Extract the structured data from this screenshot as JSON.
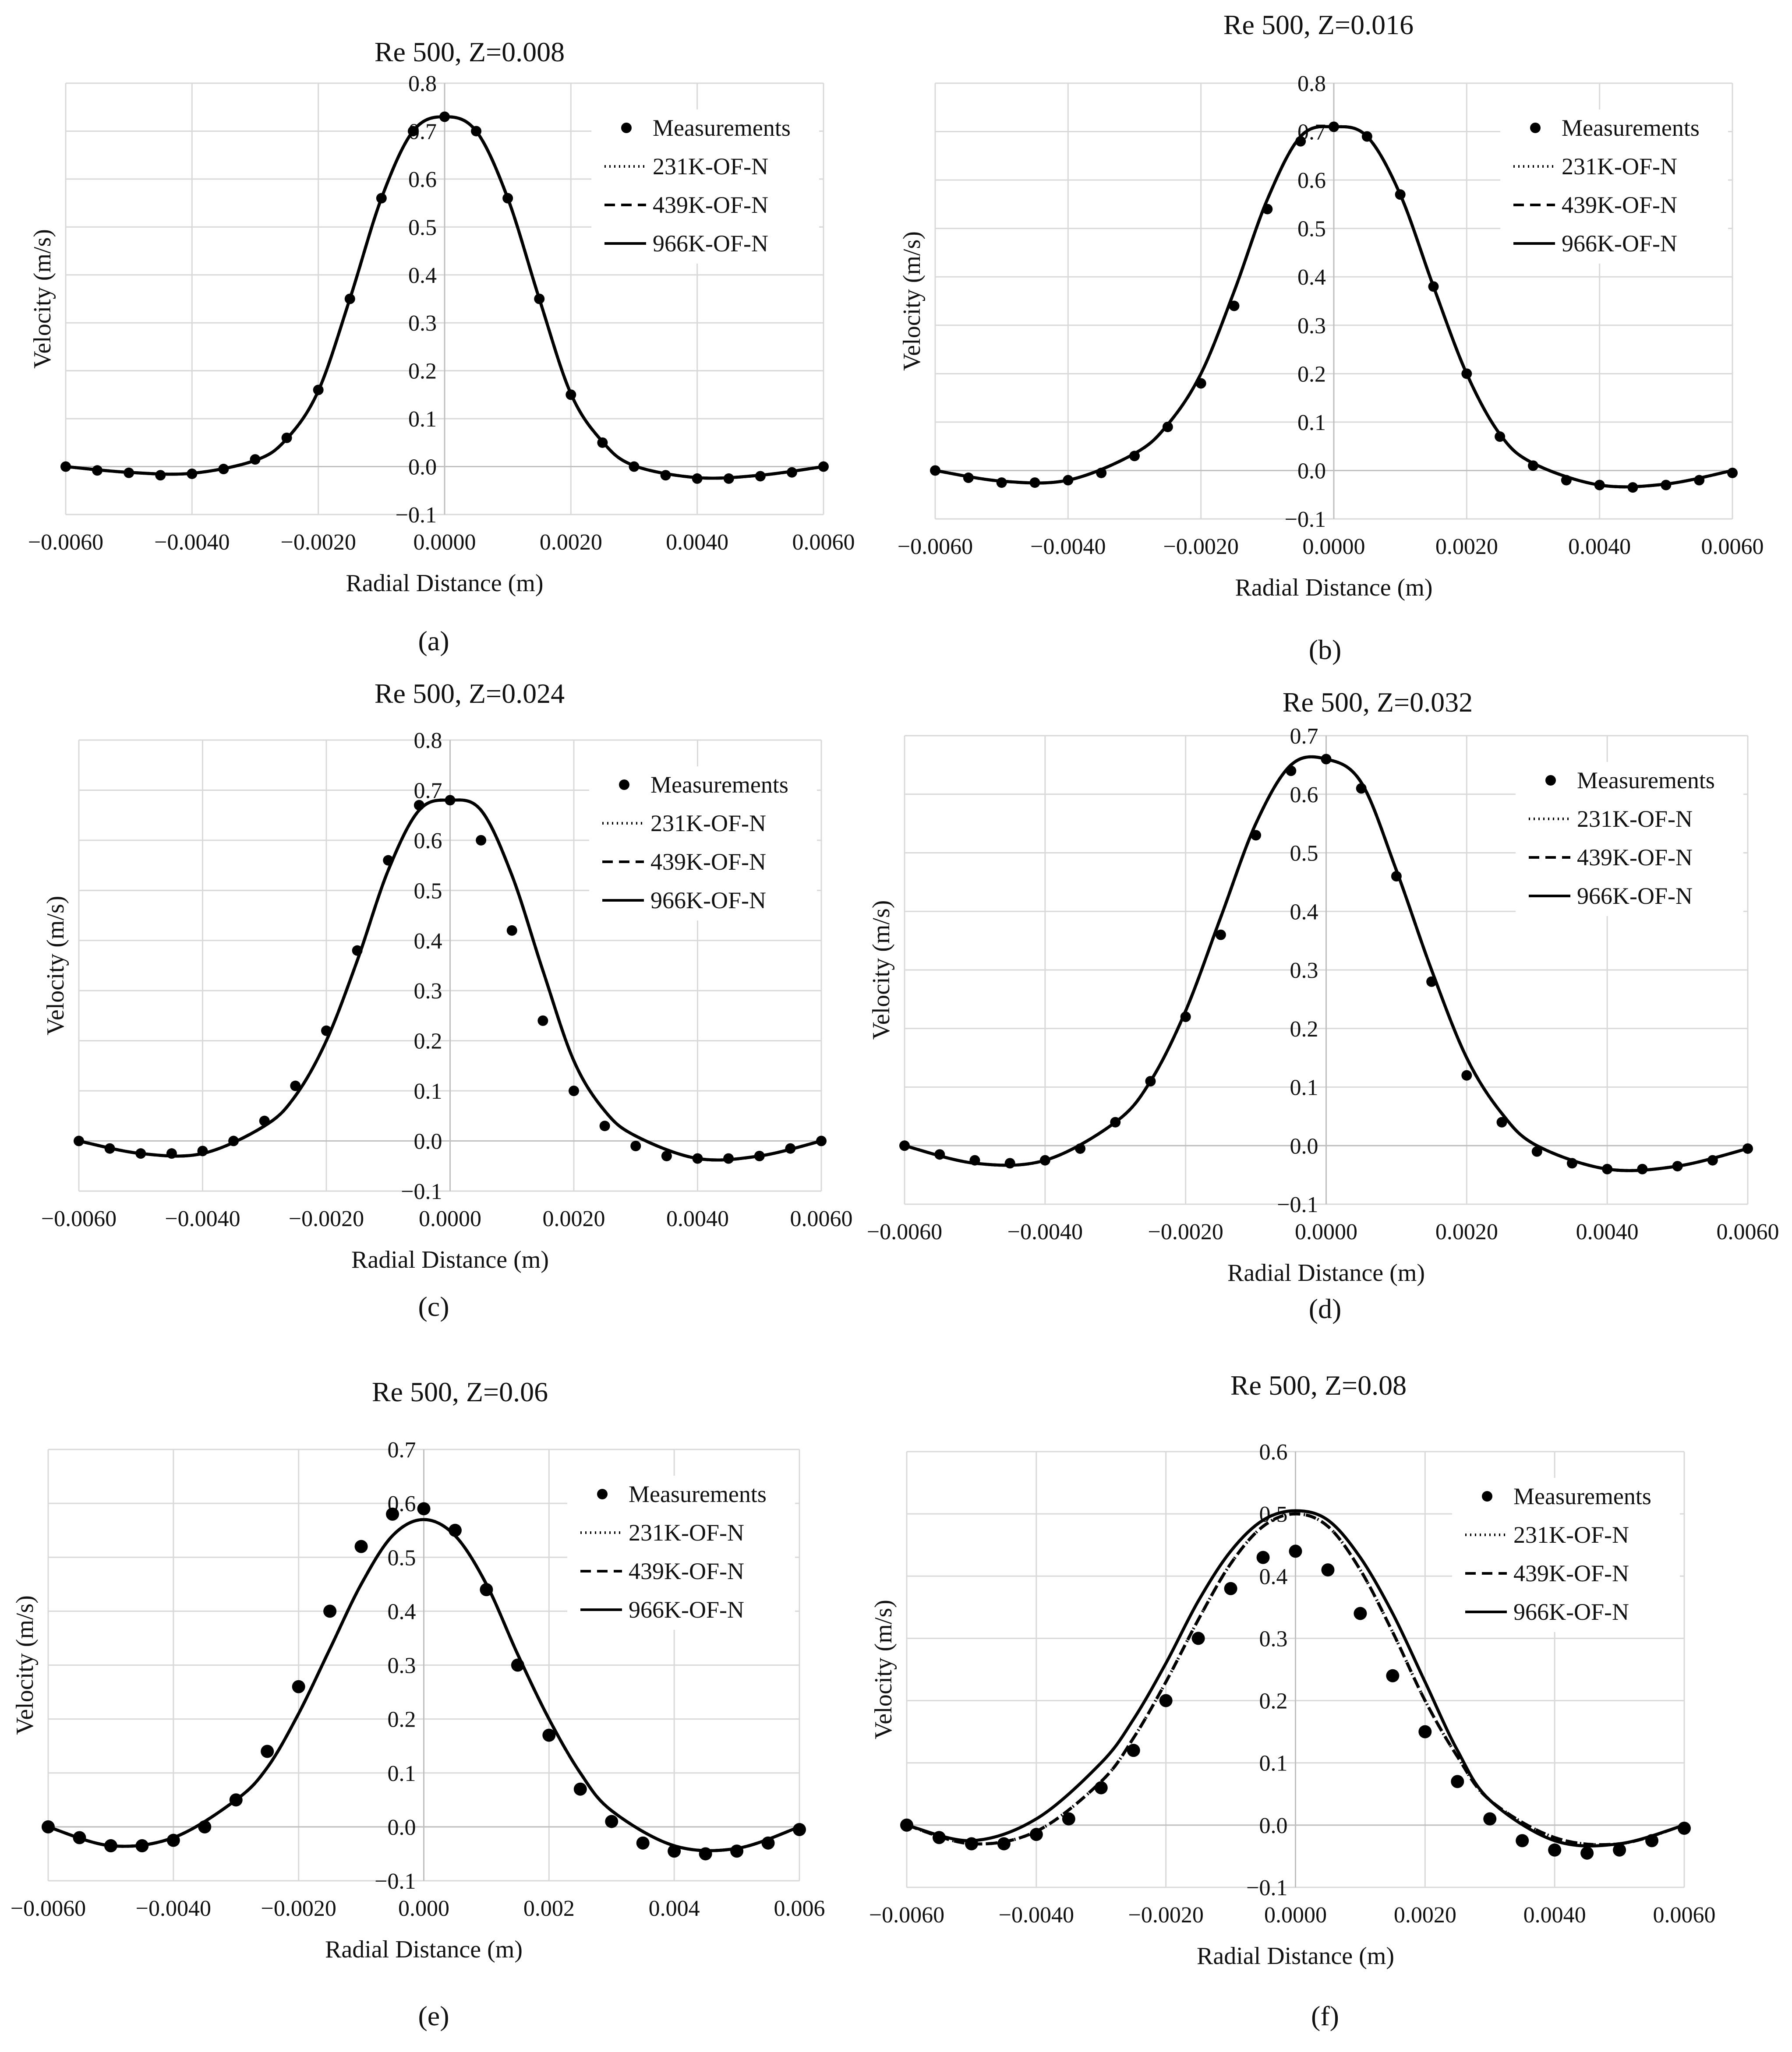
{
  "figure": {
    "panel_captions": [
      "(a)",
      "(b)",
      "(c)",
      "(d)",
      "(e)",
      "(f)"
    ]
  },
  "legend_labels": [
    "Measurements",
    "231K-OF-N",
    "439K-OF-N",
    "966K-OF-N"
  ],
  "chart_data": [
    {
      "id": "a",
      "type": "line",
      "title": "Re 500, Z=0.008",
      "xlabel": "Radial Distance (m)",
      "ylabel": "Velocity (m/s)",
      "xlim": [
        -0.006,
        0.006
      ],
      "ylim": [
        -0.1,
        0.8
      ],
      "xticks": [
        -0.006,
        -0.004,
        -0.002,
        0.0,
        0.002,
        0.004,
        0.006
      ],
      "xtick_labels": [
        "−0.0060",
        "−0.0040",
        "−0.0020",
        "0.0000",
        "0.0020",
        "0.0040",
        "0.0060"
      ],
      "yticks": [
        -0.1,
        0.0,
        0.1,
        0.2,
        0.3,
        0.4,
        0.5,
        0.6,
        0.7,
        0.8
      ],
      "ytick_labels": [
        "−0.1",
        "0.0",
        "0.1",
        "0.2",
        "0.3",
        "0.4",
        "0.5",
        "0.6",
        "0.7",
        "0.8"
      ],
      "grid": true,
      "legend_position": "top-right",
      "measurements": {
        "x": [
          -0.006,
          -0.0055,
          -0.005,
          -0.0045,
          -0.004,
          -0.0035,
          -0.003,
          -0.0025,
          -0.002,
          -0.0015,
          -0.001,
          -0.0005,
          0.0,
          0.0005,
          0.001,
          0.0015,
          0.002,
          0.0025,
          0.003,
          0.0035,
          0.004,
          0.0045,
          0.005,
          0.0055,
          0.006
        ],
        "y": [
          0.0,
          -0.008,
          -0.013,
          -0.018,
          -0.015,
          -0.005,
          0.015,
          0.06,
          0.16,
          0.35,
          0.56,
          0.7,
          0.73,
          0.7,
          0.56,
          0.35,
          0.15,
          0.05,
          0.0,
          -0.018,
          -0.025,
          -0.025,
          -0.02,
          -0.012,
          0.0
        ]
      },
      "models": {
        "x": [
          -0.006,
          -0.005,
          -0.004,
          -0.003,
          -0.0025,
          -0.002,
          -0.0015,
          -0.001,
          -0.0005,
          0.0,
          0.0005,
          0.001,
          0.0015,
          0.002,
          0.0025,
          0.003,
          0.004,
          0.005,
          0.006
        ],
        "231K-OF-N": [
          0.0,
          -0.012,
          -0.014,
          0.013,
          0.058,
          0.158,
          0.35,
          0.56,
          0.7,
          0.73,
          0.7,
          0.56,
          0.35,
          0.152,
          0.052,
          0.002,
          -0.023,
          -0.018,
          0.0
        ],
        "439K-OF-N": [
          0.0,
          -0.012,
          -0.014,
          0.013,
          0.058,
          0.158,
          0.35,
          0.56,
          0.7,
          0.73,
          0.7,
          0.56,
          0.35,
          0.152,
          0.052,
          0.002,
          -0.023,
          -0.018,
          0.0
        ],
        "966K-OF-N": [
          0.0,
          -0.012,
          -0.014,
          0.013,
          0.058,
          0.158,
          0.35,
          0.56,
          0.7,
          0.73,
          0.7,
          0.56,
          0.35,
          0.152,
          0.052,
          0.002,
          -0.023,
          -0.018,
          0.0
        ]
      }
    },
    {
      "id": "b",
      "type": "line",
      "title": "Re 500, Z=0.016",
      "xlabel": "Radial Distance (m)",
      "ylabel": "Velocity (m/s)",
      "xlim": [
        -0.006,
        0.006
      ],
      "ylim": [
        -0.1,
        0.8
      ],
      "xticks": [
        -0.006,
        -0.004,
        -0.002,
        0.0,
        0.002,
        0.004,
        0.006
      ],
      "xtick_labels": [
        "−0.0060",
        "−0.0040",
        "−0.0020",
        "0.0000",
        "0.0020",
        "0.0040",
        "0.0060"
      ],
      "yticks": [
        -0.1,
        0.0,
        0.1,
        0.2,
        0.3,
        0.4,
        0.5,
        0.6,
        0.7,
        0.8
      ],
      "ytick_labels": [
        "−0.1",
        "0.0",
        "0.1",
        "0.2",
        "0.3",
        "0.4",
        "0.5",
        "0.6",
        "0.7",
        "0.8"
      ],
      "grid": true,
      "legend_position": "top-right",
      "measurements": {
        "x": [
          -0.006,
          -0.0055,
          -0.005,
          -0.0045,
          -0.004,
          -0.0035,
          -0.003,
          -0.0025,
          -0.002,
          -0.0015,
          -0.001,
          -0.0005,
          0.0,
          0.0005,
          0.001,
          0.0015,
          0.002,
          0.0025,
          0.003,
          0.0035,
          0.004,
          0.0045,
          0.005,
          0.0055,
          0.006
        ],
        "y": [
          0.0,
          -0.015,
          -0.025,
          -0.025,
          -0.02,
          -0.005,
          0.03,
          0.09,
          0.18,
          0.34,
          0.54,
          0.68,
          0.71,
          0.69,
          0.57,
          0.38,
          0.2,
          0.07,
          0.01,
          -0.02,
          -0.03,
          -0.035,
          -0.03,
          -0.02,
          -0.005
        ]
      },
      "models": {
        "x": [
          -0.006,
          -0.005,
          -0.004,
          -0.003,
          -0.0025,
          -0.002,
          -0.0015,
          -0.001,
          -0.0005,
          0.0,
          0.0005,
          0.001,
          0.0015,
          0.002,
          0.0025,
          0.003,
          0.004,
          0.005,
          0.006
        ],
        "231K-OF-N": [
          0.0,
          -0.022,
          -0.02,
          0.035,
          0.095,
          0.2,
          0.37,
          0.56,
          0.69,
          0.71,
          0.69,
          0.57,
          0.38,
          0.2,
          0.075,
          0.015,
          -0.03,
          -0.028,
          0.0
        ],
        "439K-OF-N": [
          0.0,
          -0.022,
          -0.02,
          0.035,
          0.095,
          0.2,
          0.37,
          0.56,
          0.69,
          0.71,
          0.69,
          0.57,
          0.38,
          0.2,
          0.075,
          0.015,
          -0.03,
          -0.028,
          0.0
        ],
        "966K-OF-N": [
          0.0,
          -0.022,
          -0.02,
          0.035,
          0.095,
          0.2,
          0.37,
          0.56,
          0.69,
          0.71,
          0.69,
          0.57,
          0.38,
          0.2,
          0.075,
          0.015,
          -0.03,
          -0.028,
          0.0
        ]
      }
    },
    {
      "id": "c",
      "type": "line",
      "title": "Re 500, Z=0.024",
      "xlabel": "Radial Distance (m)",
      "ylabel": "Velocity (m/s)",
      "xlim": [
        -0.006,
        0.006
      ],
      "ylim": [
        -0.1,
        0.8
      ],
      "xticks": [
        -0.006,
        -0.004,
        -0.002,
        0.0,
        0.002,
        0.004,
        0.006
      ],
      "xtick_labels": [
        "−0.0060",
        "−0.0040",
        "−0.0020",
        "0.0000",
        "0.0020",
        "0.0040",
        "0.0060"
      ],
      "yticks": [
        -0.1,
        0.0,
        0.1,
        0.2,
        0.3,
        0.4,
        0.5,
        0.6,
        0.7,
        0.8
      ],
      "ytick_labels": [
        "−0.1",
        "0.0",
        "0.1",
        "0.2",
        "0.3",
        "0.4",
        "0.5",
        "0.6",
        "0.7",
        "0.8"
      ],
      "grid": true,
      "legend_position": "top-right",
      "measurements": {
        "x": [
          -0.006,
          -0.0055,
          -0.005,
          -0.0045,
          -0.004,
          -0.0035,
          -0.003,
          -0.0025,
          -0.002,
          -0.0015,
          -0.001,
          -0.0005,
          0.0,
          0.0005,
          0.001,
          0.0015,
          0.002,
          0.0025,
          0.003,
          0.0035,
          0.004,
          0.0045,
          0.005,
          0.0055,
          0.006
        ],
        "y": [
          0.0,
          -0.015,
          -0.025,
          -0.025,
          -0.02,
          0.0,
          0.04,
          0.11,
          0.22,
          0.38,
          0.56,
          0.67,
          0.68,
          0.6,
          0.42,
          0.24,
          0.1,
          0.03,
          -0.01,
          -0.03,
          -0.035,
          -0.035,
          -0.03,
          -0.015,
          0.0
        ]
      },
      "models": {
        "x": [
          -0.006,
          -0.005,
          -0.004,
          -0.003,
          -0.0025,
          -0.002,
          -0.0015,
          -0.001,
          -0.0005,
          0.0,
          0.0005,
          0.001,
          0.0015,
          0.002,
          0.0025,
          0.003,
          0.004,
          0.005,
          0.006
        ],
        "231K-OF-N": [
          0.0,
          -0.025,
          -0.025,
          0.03,
          0.09,
          0.2,
          0.36,
          0.54,
          0.66,
          0.68,
          0.66,
          0.53,
          0.34,
          0.16,
          0.06,
          0.01,
          -0.035,
          -0.03,
          0.0
        ],
        "439K-OF-N": [
          0.0,
          -0.025,
          -0.025,
          0.03,
          0.09,
          0.2,
          0.36,
          0.54,
          0.66,
          0.68,
          0.66,
          0.53,
          0.34,
          0.16,
          0.06,
          0.01,
          -0.035,
          -0.03,
          0.0
        ],
        "966K-OF-N": [
          0.0,
          -0.025,
          -0.025,
          0.03,
          0.09,
          0.2,
          0.36,
          0.54,
          0.66,
          0.68,
          0.66,
          0.53,
          0.34,
          0.16,
          0.06,
          0.01,
          -0.035,
          -0.03,
          0.0
        ]
      }
    },
    {
      "id": "d",
      "type": "line",
      "title": "Re 500, Z=0.032",
      "xlabel": "Radial Distance (m)",
      "ylabel": "Velocity (m/s)",
      "xlim": [
        -0.006,
        0.006
      ],
      "ylim": [
        -0.1,
        0.7
      ],
      "xticks": [
        -0.006,
        -0.004,
        -0.002,
        0.0,
        0.002,
        0.004,
        0.006
      ],
      "xtick_labels": [
        "−0.0060",
        "−0.0040",
        "−0.0020",
        "0.0000",
        "0.0020",
        "0.0040",
        "0.0060"
      ],
      "yticks": [
        -0.1,
        0.0,
        0.1,
        0.2,
        0.3,
        0.4,
        0.5,
        0.6,
        0.7
      ],
      "ytick_labels": [
        "−0.1",
        "0.0",
        "0.1",
        "0.2",
        "0.3",
        "0.4",
        "0.5",
        "0.6",
        "0.7"
      ],
      "grid": true,
      "legend_position": "top-right",
      "measurements": {
        "x": [
          -0.006,
          -0.0055,
          -0.005,
          -0.0045,
          -0.004,
          -0.0035,
          -0.003,
          -0.0025,
          -0.002,
          -0.0015,
          -0.001,
          -0.0005,
          0.0,
          0.0005,
          0.001,
          0.0015,
          0.002,
          0.0025,
          0.003,
          0.0035,
          0.004,
          0.0045,
          0.005,
          0.0055,
          0.006
        ],
        "y": [
          0.0,
          -0.015,
          -0.025,
          -0.03,
          -0.025,
          -0.005,
          0.04,
          0.11,
          0.22,
          0.36,
          0.53,
          0.64,
          0.66,
          0.61,
          0.46,
          0.28,
          0.12,
          0.04,
          -0.01,
          -0.03,
          -0.04,
          -0.04,
          -0.035,
          -0.025,
          -0.005
        ]
      },
      "models": {
        "x": [
          -0.006,
          -0.005,
          -0.004,
          -0.003,
          -0.0025,
          -0.002,
          -0.0015,
          -0.001,
          -0.0005,
          0.0,
          0.0005,
          0.001,
          0.0015,
          0.002,
          0.0025,
          0.003,
          0.004,
          0.005,
          0.006
        ],
        "231K-OF-N": [
          0.0,
          -0.03,
          -0.025,
          0.04,
          0.11,
          0.23,
          0.39,
          0.55,
          0.65,
          0.66,
          0.62,
          0.47,
          0.3,
          0.15,
          0.055,
          0.0,
          -0.04,
          -0.035,
          -0.005
        ],
        "439K-OF-N": [
          0.0,
          -0.03,
          -0.025,
          0.04,
          0.11,
          0.23,
          0.39,
          0.55,
          0.65,
          0.66,
          0.62,
          0.47,
          0.3,
          0.15,
          0.055,
          0.0,
          -0.04,
          -0.035,
          -0.005
        ],
        "966K-OF-N": [
          0.0,
          -0.03,
          -0.025,
          0.04,
          0.11,
          0.23,
          0.39,
          0.55,
          0.65,
          0.66,
          0.62,
          0.47,
          0.3,
          0.15,
          0.055,
          0.0,
          -0.04,
          -0.035,
          -0.005
        ]
      }
    },
    {
      "id": "e",
      "type": "line",
      "title": "Re 500, Z=0.06",
      "xlabel": "Radial Distance (m)",
      "ylabel": "Velocity (m/s)",
      "xlim": [
        -0.006,
        0.006
      ],
      "ylim": [
        -0.1,
        0.7
      ],
      "xticks": [
        -0.006,
        -0.004,
        -0.002,
        0.0,
        0.002,
        0.004,
        0.006
      ],
      "xtick_labels": [
        "−0.0060",
        "−0.0040",
        "−0.0020",
        "0.000",
        "0.002",
        "0.004",
        "0.006"
      ],
      "yticks": [
        -0.1,
        0.0,
        0.1,
        0.2,
        0.3,
        0.4,
        0.5,
        0.6,
        0.7
      ],
      "ytick_labels": [
        "−0.1",
        "0.0",
        "0.1",
        "0.2",
        "0.3",
        "0.4",
        "0.5",
        "0.6",
        "0.7"
      ],
      "grid": true,
      "legend_position": "top-right",
      "measurements": {
        "x": [
          -0.006,
          -0.0055,
          -0.005,
          -0.0045,
          -0.004,
          -0.0035,
          -0.003,
          -0.0025,
          -0.002,
          -0.0015,
          -0.001,
          -0.0005,
          0.0,
          0.0005,
          0.001,
          0.0015,
          0.002,
          0.0025,
          0.003,
          0.0035,
          0.004,
          0.0045,
          0.005,
          0.0055,
          0.006
        ],
        "y": [
          0.0,
          -0.02,
          -0.035,
          -0.035,
          -0.025,
          0.0,
          0.05,
          0.14,
          0.26,
          0.4,
          0.52,
          0.58,
          0.59,
          0.55,
          0.44,
          0.3,
          0.17,
          0.07,
          0.01,
          -0.03,
          -0.045,
          -0.05,
          -0.045,
          -0.03,
          -0.005
        ]
      },
      "models": {
        "x": [
          -0.006,
          -0.005,
          -0.004,
          -0.003,
          -0.0025,
          -0.002,
          -0.0015,
          -0.001,
          -0.0005,
          0.0,
          0.0005,
          0.001,
          0.0015,
          0.002,
          0.0025,
          0.003,
          0.004,
          0.005,
          0.006
        ],
        "231K-OF-N": [
          0.0,
          -0.035,
          -0.02,
          0.05,
          0.11,
          0.21,
          0.33,
          0.45,
          0.54,
          0.57,
          0.54,
          0.45,
          0.32,
          0.2,
          0.1,
          0.03,
          -0.035,
          -0.04,
          0.0
        ],
        "439K-OF-N": [
          0.0,
          -0.035,
          -0.02,
          0.05,
          0.11,
          0.21,
          0.33,
          0.45,
          0.54,
          0.57,
          0.54,
          0.45,
          0.32,
          0.2,
          0.1,
          0.03,
          -0.035,
          -0.04,
          0.0
        ],
        "966K-OF-N": [
          0.0,
          -0.035,
          -0.02,
          0.05,
          0.11,
          0.21,
          0.33,
          0.45,
          0.54,
          0.57,
          0.54,
          0.45,
          0.32,
          0.2,
          0.1,
          0.03,
          -0.035,
          -0.04,
          0.0
        ]
      }
    },
    {
      "id": "f",
      "type": "line",
      "title": "Re 500, Z=0.08",
      "xlabel": "Radial Distance (m)",
      "ylabel": "Velocity (m/s)",
      "xlim": [
        -0.006,
        0.006
      ],
      "ylim": [
        -0.1,
        0.6
      ],
      "xticks": [
        -0.006,
        -0.004,
        -0.002,
        0.0,
        0.002,
        0.004,
        0.006
      ],
      "xtick_labels": [
        "−0.0060",
        "−0.0040",
        "−0.0020",
        "0.0000",
        "0.0020",
        "0.0040",
        "0.0060"
      ],
      "yticks": [
        -0.1,
        0.0,
        0.1,
        0.2,
        0.3,
        0.4,
        0.5,
        0.6
      ],
      "ytick_labels": [
        "−0.1",
        "0.0",
        "0.1",
        "0.2",
        "0.3",
        "0.4",
        "0.5",
        "0.6"
      ],
      "grid": true,
      "legend_position": "top-right",
      "measurements": {
        "x": [
          -0.006,
          -0.0055,
          -0.005,
          -0.0045,
          -0.004,
          -0.0035,
          -0.003,
          -0.0025,
          -0.002,
          -0.0015,
          -0.001,
          -0.0005,
          0.0,
          0.0005,
          0.001,
          0.0015,
          0.002,
          0.0025,
          0.003,
          0.0035,
          0.004,
          0.0045,
          0.005,
          0.0055,
          0.006
        ],
        "y": [
          0.0,
          -0.02,
          -0.03,
          -0.03,
          -0.015,
          0.01,
          0.06,
          0.12,
          0.2,
          0.3,
          0.38,
          0.43,
          0.44,
          0.41,
          0.34,
          0.24,
          0.15,
          0.07,
          0.01,
          -0.025,
          -0.04,
          -0.045,
          -0.04,
          -0.025,
          -0.005
        ]
      },
      "models": {
        "x": [
          -0.006,
          -0.005,
          -0.004,
          -0.003,
          -0.0025,
          -0.002,
          -0.0015,
          -0.001,
          -0.0005,
          0.0,
          0.0005,
          0.001,
          0.0015,
          0.002,
          0.0025,
          0.003,
          0.004,
          0.005,
          0.006
        ],
        "231K-OF-N": [
          0.0,
          -0.03,
          -0.01,
          0.07,
          0.14,
          0.23,
          0.33,
          0.42,
          0.48,
          0.5,
          0.48,
          0.41,
          0.31,
          0.2,
          0.11,
          0.04,
          -0.02,
          -0.03,
          0.0
        ],
        "439K-OF-N": [
          0.0,
          -0.03,
          -0.01,
          0.07,
          0.14,
          0.23,
          0.33,
          0.42,
          0.48,
          0.5,
          0.48,
          0.41,
          0.31,
          0.2,
          0.11,
          0.04,
          -0.02,
          -0.03,
          0.0
        ],
        "966K-OF-N": [
          0.0,
          -0.025,
          0.01,
          0.1,
          0.17,
          0.26,
          0.36,
          0.44,
          0.49,
          0.505,
          0.49,
          0.43,
          0.34,
          0.23,
          0.12,
          0.04,
          -0.025,
          -0.03,
          0.0
        ]
      }
    }
  ]
}
